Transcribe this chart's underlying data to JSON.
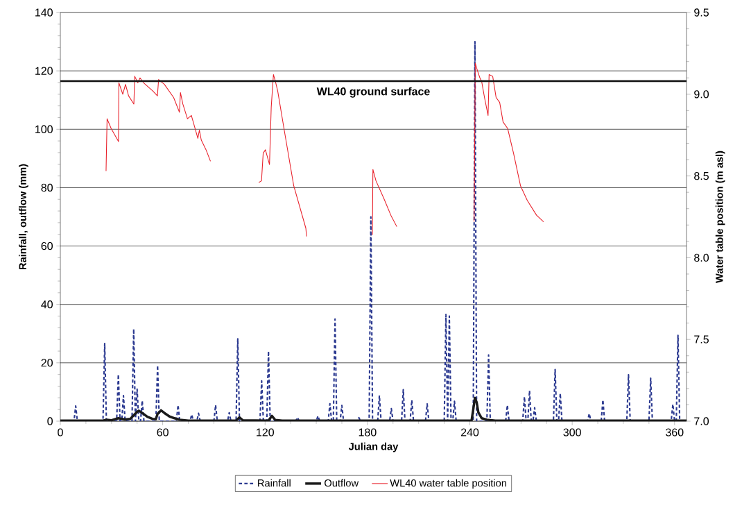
{
  "chart_data": {
    "type": "line",
    "xlabel": "Julian day",
    "ylabel": "Rainfall, outflow (mm)",
    "y2label": "Water table position (m asl)",
    "xlim": [
      0,
      367
    ],
    "ylim": [
      0,
      140
    ],
    "y2lim": [
      7.0,
      9.5
    ],
    "xticks": [
      0,
      60,
      120,
      180,
      240,
      300,
      360
    ],
    "yticks": [
      0,
      20,
      40,
      60,
      80,
      100,
      120,
      140
    ],
    "y2ticks": [
      {
        "value": 7.0,
        "label": "7.0"
      },
      {
        "value": 7.5,
        "label": "7.5"
      },
      {
        "value": 8.0,
        "label": "8.0"
      },
      {
        "value": 8.5,
        "label": "8.5"
      },
      {
        "value": 9.0,
        "label": "9.0"
      },
      {
        "value": 9.5,
        "label": "9.5"
      }
    ],
    "grid": "y",
    "legend": "bottom",
    "ref_lines": [
      {
        "axis": "y2",
        "value": 9.08,
        "label": "WL40 ground surface",
        "color": "#1a1a1a"
      }
    ],
    "series": [
      {
        "name": "Rainfall",
        "color": "#2b3990",
        "line_style": "dashed",
        "x": [
          0,
          8,
          9,
          10,
          25,
          26,
          27,
          33,
          34,
          35,
          36,
          37,
          38,
          42,
          43,
          44,
          45,
          46,
          47,
          48,
          49,
          56,
          57,
          58,
          68,
          69,
          70,
          76,
          77,
          78,
          80,
          81,
          82,
          90,
          91,
          92,
          98,
          99,
          100,
          103,
          104,
          105,
          117,
          118,
          119,
          121,
          122,
          123,
          138,
          139,
          140,
          150,
          151,
          152,
          157,
          158,
          159,
          160,
          161,
          162,
          164,
          165,
          166,
          174,
          175,
          176,
          181,
          182,
          183,
          186,
          187,
          188,
          193,
          194,
          195,
          200,
          201,
          202,
          205,
          206,
          207,
          214,
          215,
          216,
          225,
          226,
          227,
          228,
          229,
          230,
          231,
          232,
          242,
          243,
          244,
          250,
          251,
          252,
          261,
          262,
          263,
          271,
          272,
          273,
          274,
          275,
          276,
          277,
          278,
          279,
          289,
          290,
          291,
          292,
          293,
          294,
          309,
          310,
          311,
          317,
          318,
          319,
          332,
          333,
          334,
          345,
          346,
          347,
          358,
          359,
          360,
          361,
          362,
          363,
          367
        ],
        "values": [
          0,
          0,
          5.2,
          0,
          0,
          26.6,
          0,
          0,
          16,
          0,
          0,
          8.8,
          0,
          0,
          31.6,
          0,
          11,
          0,
          0,
          7,
          0,
          0,
          19.1,
          0,
          0,
          5.5,
          0,
          0,
          2.3,
          0,
          0,
          2.7,
          0,
          0,
          5.5,
          0,
          0,
          2.9,
          0,
          0,
          28.2,
          0,
          0,
          13.8,
          0,
          0,
          24,
          0,
          0,
          1.3,
          0,
          0,
          1.8,
          0,
          0,
          6,
          0,
          0,
          35,
          0,
          0,
          5.4,
          0,
          0,
          1.2,
          0,
          0,
          70,
          0,
          0,
          8.8,
          0,
          0,
          4.3,
          0,
          0,
          10.8,
          0,
          0,
          7.2,
          0,
          0,
          5.9,
          0,
          0,
          36.5,
          0,
          36,
          0,
          0,
          6.8,
          0,
          0,
          130,
          0,
          0,
          22.7,
          0,
          0,
          5.5,
          0,
          0,
          8.4,
          0,
          0,
          10.5,
          0,
          0,
          4.6,
          0,
          0,
          17.7,
          0,
          0,
          9.5,
          0,
          0,
          2.6,
          0,
          0,
          7.3,
          0,
          0,
          15.9,
          0,
          0,
          14.7,
          0,
          0,
          5.8,
          0,
          0,
          29.4,
          0,
          0
        ]
      },
      {
        "name": "Outflow",
        "color": "#1a1a1a",
        "line_style": "solid",
        "x": [
          0,
          25,
          27,
          30,
          34,
          38,
          41,
          43,
          45,
          46,
          48,
          51,
          54,
          56,
          57,
          59,
          61,
          64,
          67,
          70,
          75,
          103,
          105,
          107,
          122,
          124,
          126,
          130,
          241,
          242,
          243,
          244,
          245,
          247,
          250,
          255,
          367
        ],
        "values": [
          0.2,
          0.2,
          0.5,
          0.3,
          1.0,
          0.6,
          0.8,
          2.0,
          3.2,
          3.6,
          2.8,
          1.5,
          0.8,
          0.7,
          2.5,
          3.7,
          2.8,
          1.6,
          1.0,
          0.5,
          0.2,
          0.2,
          1.3,
          0.3,
          0.2,
          1.8,
          0.4,
          0.2,
          0.2,
          4,
          8,
          6.5,
          3,
          1,
          0.5,
          0.2,
          0.2
        ]
      },
      {
        "name": "WL40 water table position",
        "color": "#e8202a",
        "line_style": "solid",
        "axis": "y2",
        "x": [
          26.8,
          27.4,
          29.8,
          34.1,
          34.3,
          36.6,
          38.2,
          40.0,
          43.1,
          43.6,
          45.4,
          46.7,
          48.8,
          54.2,
          56.9,
          57.6,
          61.0,
          66.4,
          69.8,
          70.4,
          71.8,
          74.5,
          76.8,
          77.9,
          80.6,
          81.5,
          82.6,
          85.4,
          88.0,
          100,
          116.3,
          117.9,
          118.9,
          120.2,
          122.6,
          123.6,
          124.9,
          126.0,
          127.4,
          131.4,
          136.8,
          143.9,
          144.3,
          160,
          182.9,
          183.2,
          185.0,
          189.7,
          193.7,
          197.2,
          220,
          242.5,
          243.2,
          244.6,
          245.9,
          246.9,
          248.6,
          250.7,
          251.3,
          253.4,
          255.4,
          257.5,
          259.5,
          262.2,
          265.6,
          269.7,
          273.7,
          279.1,
          283.2
        ],
        "values": [
          8.53,
          8.85,
          8.79,
          8.71,
          9.07,
          9.0,
          9.06,
          8.99,
          8.94,
          9.11,
          9.07,
          9.1,
          9.07,
          9.02,
          8.99,
          9.09,
          9.06,
          8.98,
          8.89,
          9.01,
          8.94,
          8.85,
          8.87,
          8.83,
          8.73,
          8.78,
          8.72,
          8.66,
          8.59,
          null,
          8.46,
          8.47,
          8.64,
          8.66,
          8.57,
          8.92,
          9.12,
          9.08,
          9.02,
          8.77,
          8.44,
          8.18,
          8.13,
          null,
          8.14,
          8.54,
          8.47,
          8.36,
          8.26,
          8.19,
          null,
          8.22,
          9.19,
          9.14,
          9.1,
          9.08,
          8.98,
          8.87,
          9.12,
          9.11,
          8.98,
          8.95,
          8.83,
          8.79,
          8.64,
          8.44,
          8.35,
          8.26,
          8.22
        ]
      }
    ]
  }
}
